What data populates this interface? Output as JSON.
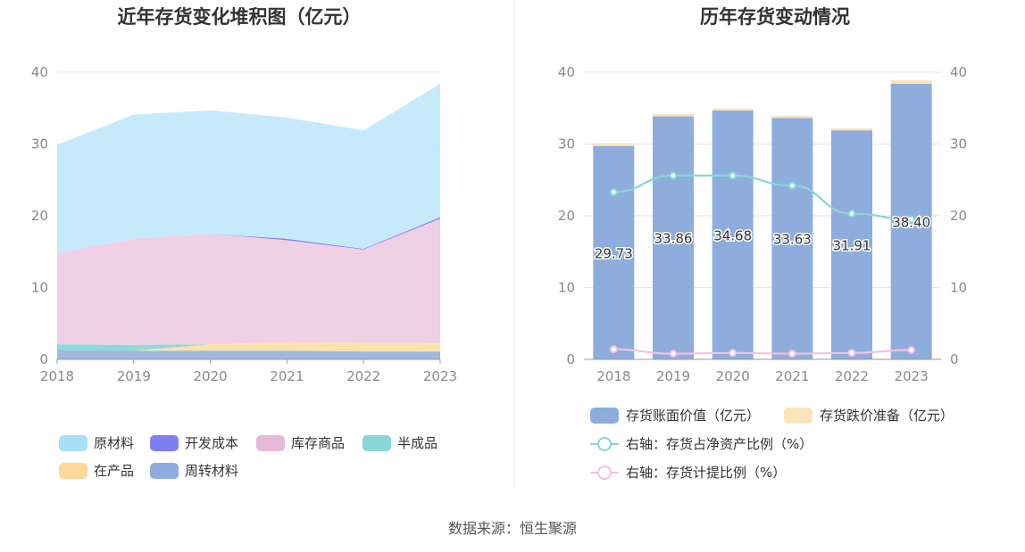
{
  "source": "数据来源：恒生聚源",
  "chart_data": [
    {
      "type": "area",
      "stacked": true,
      "title": "近年存货变化堆积图（亿元）",
      "x": [
        "2018",
        "2019",
        "2020",
        "2021",
        "2022",
        "2023"
      ],
      "ylim": [
        0,
        40
      ],
      "yticks": [
        "0",
        "10",
        "20",
        "30",
        "40"
      ],
      "grid": true,
      "legend_position": "bottom",
      "series": [
        {
          "name": "周转材料",
          "color": "#9ab3dd",
          "values": [
            1.3,
            1.2,
            1.2,
            1.2,
            1.1,
            1.1
          ]
        },
        {
          "name": "在产品",
          "color": "#fde2a6",
          "values": [
            0.0,
            0.0,
            0.9,
            1.2,
            1.2,
            1.1
          ]
        },
        {
          "name": "半成品",
          "color": "#88d7d7",
          "values": [
            0.8,
            0.8,
            0.0,
            0.0,
            0.0,
            0.0
          ]
        },
        {
          "name": "库存商品",
          "color": "#eecde3",
          "values": [
            12.7,
            14.8,
            15.4,
            14.2,
            13.0,
            17.4
          ]
        },
        {
          "name": "开发成本",
          "color": "#7f7ef5",
          "values": [
            0.0,
            0.0,
            0.0,
            0.2,
            0.1,
            0.2
          ]
        },
        {
          "name": "原材料",
          "color": "#c3e9fb",
          "values": [
            15.1,
            17.3,
            17.2,
            16.9,
            16.5,
            18.6
          ]
        }
      ],
      "legend": [
        {
          "name": "原材料",
          "color": "#a8dff9"
        },
        {
          "name": "开发成本",
          "color": "#7f7ef5"
        },
        {
          "name": "库存商品",
          "color": "#e6b9d9"
        },
        {
          "name": "半成品",
          "color": "#88d7d7"
        },
        {
          "name": "在产品",
          "color": "#fdd89a"
        },
        {
          "name": "周转材料",
          "color": "#8eaddd"
        }
      ]
    },
    {
      "type": "bar",
      "title": "历年存货变动情况",
      "categories": [
        "2018",
        "2019",
        "2020",
        "2021",
        "2022",
        "2023"
      ],
      "ylim": [
        0,
        40
      ],
      "yticks": [
        "0",
        "10",
        "20",
        "30",
        "40"
      ],
      "y2lim": [
        0,
        40
      ],
      "y2ticks": [
        "0",
        "10",
        "20",
        "30",
        "40"
      ],
      "grid": true,
      "legend_position": "bottom",
      "series": [
        {
          "name": "存货账面价值（亿元）",
          "type": "bar",
          "color": "#8eaddd",
          "values": [
            29.73,
            33.86,
            34.68,
            33.63,
            31.91,
            38.4
          ],
          "labels": [
            "29.73",
            "33.86",
            "34.68",
            "33.63",
            "31.91",
            "38.40"
          ]
        },
        {
          "name": "存货跌价准备（亿元）",
          "type": "bar",
          "color": "#fde4b8",
          "values": [
            0.4,
            0.3,
            0.3,
            0.3,
            0.3,
            0.5
          ]
        },
        {
          "name": "右轴：存货占净资产比例（%）",
          "type": "line",
          "axis": "right",
          "color": "#88d7d7",
          "values": [
            23.3,
            25.6,
            25.6,
            24.2,
            20.3,
            19.5
          ]
        },
        {
          "name": "右轴：存货计提比例（%）",
          "type": "line",
          "axis": "right",
          "color": "#f2c2e0",
          "values": [
            1.4,
            0.8,
            0.9,
            0.8,
            0.9,
            1.3
          ]
        }
      ]
    }
  ]
}
